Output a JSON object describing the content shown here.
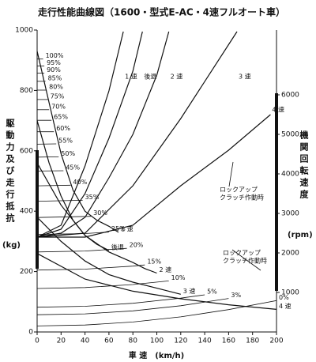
{
  "chart_data": {
    "type": "line",
    "title": "走行性能曲線図（1600・型式E-AC・4速フルオート車）",
    "xlabel": "車 速　(km/h)",
    "ylabel": "駆動力及び走行抵抗",
    "yunit": "(kg)",
    "y2label": "機関回転速度",
    "y2unit": "(rpm)",
    "xlim": [
      0,
      200
    ],
    "xticks": [
      0,
      20,
      40,
      60,
      80,
      100,
      120,
      140,
      160,
      180,
      200
    ],
    "ylim": [
      0,
      1000
    ],
    "yticks": [
      0,
      200,
      400,
      600,
      800,
      1000
    ],
    "y2lim": [
      0,
      7640
    ],
    "y2ticks": [
      1000,
      2000,
      3000,
      4000,
      5000,
      6000
    ],
    "annotations": [
      [
        "ロックアップ",
        "クラッチ作動時"
      ],
      [
        "ロックアップ",
        "クラッチ作動時"
      ]
    ],
    "series": [
      {
        "name": "1 速",
        "color": "#111",
        "x": [
          0,
          10,
          20,
          30,
          40,
          50,
          60,
          68
        ],
        "values": [
          930,
          760,
          590,
          470,
          400,
          370,
          350,
          330
        ]
      },
      {
        "name": "後退",
        "color": "#111",
        "x": [
          0,
          10,
          20,
          30,
          40,
          50,
          60
        ],
        "values": [
          700,
          560,
          450,
          370,
          320,
          290,
          270
        ]
      },
      {
        "name": "2 速",
        "color": "#111",
        "x": [
          0,
          20,
          40,
          60,
          80,
          90,
          100
        ],
        "values": [
          560,
          420,
          320,
          265,
          230,
          210,
          195
        ]
      },
      {
        "name": "3 速",
        "color": "#111",
        "x": [
          0,
          20,
          40,
          60,
          80,
          100,
          120
        ],
        "values": [
          380,
          300,
          235,
          190,
          165,
          145,
          125
        ]
      },
      {
        "name": "4 速",
        "color": "#111",
        "x": [
          0,
          40,
          80,
          120,
          160,
          200
        ],
        "values": [
          260,
          175,
          135,
          110,
          90,
          75
        ]
      },
      {
        "name": "1 速",
        "color": "#111",
        "axis": "y2",
        "x": [
          0,
          20,
          40,
          60,
          72
        ],
        "values": [
          2400,
          2700,
          4200,
          6100,
          7600
        ]
      },
      {
        "name": "後退",
        "color": "#111",
        "axis": "y2",
        "x": [
          0,
          20,
          40,
          60,
          80,
          88
        ],
        "values": [
          2400,
          2600,
          3500,
          4900,
          6600,
          7600
        ]
      },
      {
        "name": "2 速",
        "color": "#111",
        "axis": "y2",
        "x": [
          0,
          20,
          40,
          60,
          80,
          100,
          110
        ],
        "values": [
          2400,
          2500,
          2900,
          3900,
          5000,
          6500,
          7600
        ]
      },
      {
        "name": "3 速",
        "color": "#111",
        "axis": "y2",
        "x": [
          0,
          40,
          80,
          120,
          167
        ],
        "values": [
          2400,
          2500,
          3700,
          5400,
          7600
        ]
      },
      {
        "name": "4 速",
        "color": "#111",
        "axis": "y2",
        "x": [
          0,
          40,
          80,
          120,
          160,
          195
        ],
        "values": [
          2400,
          2400,
          2700,
          3700,
          4600,
          5500
        ]
      },
      {
        "name": "0%",
        "color": "#111",
        "x": [
          0,
          40,
          80,
          120,
          160,
          200
        ],
        "values": [
          20,
          23,
          33,
          50,
          74,
          104
        ]
      },
      {
        "name": "3%",
        "color": "#111",
        "x": [
          0,
          40,
          80,
          120,
          160
        ],
        "values": [
          57,
          60,
          70,
          87,
          111
        ]
      },
      {
        "name": "5%",
        "color": "#111",
        "x": [
          0,
          40,
          80,
          120,
          140
        ],
        "values": [
          82,
          85,
          95,
          112,
          123
        ]
      },
      {
        "name": "10%",
        "color": "#111",
        "x": [
          0,
          40,
          80,
          110
        ],
        "values": [
          144,
          147,
          157,
          169
        ]
      },
      {
        "name": "15%",
        "color": "#111",
        "x": [
          0,
          40,
          80,
          90
        ],
        "values": [
          205,
          208,
          218,
          222
        ]
      },
      {
        "name": "20%",
        "color": "#111",
        "x": [
          0,
          40,
          75
        ],
        "values": [
          265,
          268,
          277
        ]
      },
      {
        "name": "25%",
        "color": "#111",
        "x": [
          0,
          40,
          60
        ],
        "values": [
          323,
          326,
          331
        ]
      },
      {
        "name": "30%",
        "color": "#111",
        "x": [
          0,
          45
        ],
        "values": [
          379,
          383
        ]
      },
      {
        "name": "35%",
        "color": "#111",
        "x": [
          0,
          38
        ],
        "values": [
          433,
          436
        ]
      },
      {
        "name": "40%",
        "color": "#111",
        "x": [
          0,
          28
        ],
        "values": [
          484,
          486
        ]
      },
      {
        "name": "45%",
        "color": "#111",
        "x": [
          0,
          22
        ],
        "values": [
          533,
          534
        ]
      },
      {
        "name": "50%",
        "color": "#111",
        "x": [
          0,
          18
        ],
        "values": [
          579,
          580
        ]
      },
      {
        "name": "55%",
        "color": "#111",
        "x": [
          0,
          16
        ],
        "values": [
          622,
          623
        ]
      },
      {
        "name": "60%",
        "color": "#111",
        "x": [
          0,
          14
        ],
        "values": [
          663,
          663
        ]
      },
      {
        "name": "65%",
        "color": "#111",
        "x": [
          0,
          12
        ],
        "values": [
          701,
          701
        ]
      },
      {
        "name": "70%",
        "color": "#111",
        "x": [
          0,
          10
        ],
        "values": [
          736,
          736
        ]
      },
      {
        "name": "75%",
        "color": "#111",
        "x": [
          0,
          9
        ],
        "values": [
          770,
          770
        ]
      },
      {
        "name": "80%",
        "color": "#111",
        "x": [
          0,
          8
        ],
        "values": [
          801,
          801
        ]
      },
      {
        "name": "85%",
        "color": "#111",
        "x": [
          0,
          7
        ],
        "values": [
          830,
          830
        ]
      },
      {
        "name": "90%",
        "color": "#111",
        "x": [
          0,
          6
        ],
        "values": [
          857,
          857
        ]
      },
      {
        "name": "95%",
        "color": "#111",
        "x": [
          0,
          6
        ],
        "values": [
          881,
          881
        ]
      },
      {
        "name": "100%",
        "color": "#111",
        "x": [
          0,
          5
        ],
        "values": [
          904,
          904
        ]
      }
    ]
  }
}
